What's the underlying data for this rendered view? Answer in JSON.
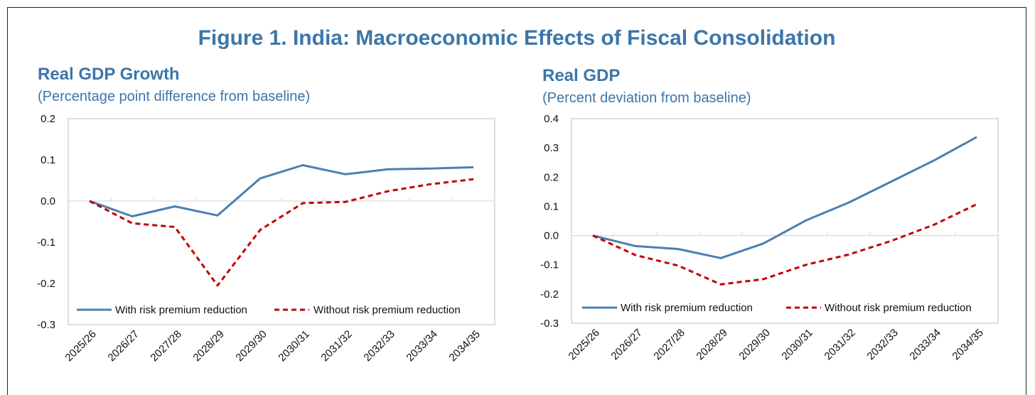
{
  "figure_title": "Figure 1. India: Macroeconomic Effects of Fiscal Consolidation",
  "colors": {
    "accent": "#3c76a9",
    "series_with": "#4d7fad",
    "series_without": "#c00000",
    "grid": "#d0d0d0",
    "frame": "#bfbfbf"
  },
  "panels": [
    {
      "title": "Real GDP Growth",
      "subtitle": "(Percentage point difference from baseline)"
    },
    {
      "title": "Real GDP",
      "subtitle": "(Percent deviation from baseline)"
    }
  ],
  "chart_data": [
    {
      "type": "line",
      "title": "Real GDP Growth",
      "subtitle": "(Percentage point difference from baseline)",
      "categories": [
        "2025/26",
        "2026/27",
        "2027/28",
        "2028/29",
        "2029/30",
        "2030/31",
        "2031/32",
        "2032/33",
        "2033/34",
        "2034/35"
      ],
      "ylim": [
        -0.3,
        0.2
      ],
      "yticks": [
        "0.2",
        "0.1",
        "0.0",
        "-0.1",
        "-0.2",
        "-0.3"
      ],
      "yticks_values": [
        0.2,
        0.1,
        0.0,
        -0.1,
        -0.2,
        -0.3
      ],
      "grid": "horizontal at 0.0 only",
      "legend_position": "bottom inside plot",
      "series": [
        {
          "name": "With risk premium reduction",
          "style": "solid",
          "color": "#4d7fad",
          "values": [
            0.0,
            -0.037,
            -0.013,
            -0.035,
            0.055,
            0.087,
            0.065,
            0.077,
            0.079,
            0.082
          ]
        },
        {
          "name": "Without risk premium reduction",
          "style": "dashed",
          "color": "#c00000",
          "values": [
            0.0,
            -0.054,
            -0.063,
            -0.205,
            -0.07,
            -0.005,
            -0.002,
            0.024,
            0.041,
            0.053
          ]
        }
      ]
    },
    {
      "type": "line",
      "title": "Real GDP",
      "subtitle": "(Percent deviation from baseline)",
      "categories": [
        "2025/26",
        "2026/27",
        "2027/28",
        "2028/29",
        "2029/30",
        "2030/31",
        "2031/32",
        "2032/33",
        "2033/34",
        "2034/35"
      ],
      "ylim": [
        -0.3,
        0.4
      ],
      "yticks": [
        "0.4",
        "0.3",
        "0.2",
        "0.1",
        "0.0",
        "-0.1",
        "-0.2",
        "-0.3"
      ],
      "yticks_values": [
        0.4,
        0.3,
        0.2,
        0.1,
        0.0,
        -0.1,
        -0.2,
        -0.3
      ],
      "grid": "horizontal at 0.0 only",
      "legend_position": "bottom inside plot",
      "series": [
        {
          "name": "With risk premium reduction",
          "style": "solid",
          "color": "#4d7fad",
          "values": [
            0.0,
            -0.036,
            -0.046,
            -0.077,
            -0.027,
            0.052,
            0.113,
            0.185,
            0.257,
            0.337
          ]
        },
        {
          "name": "Without risk premium reduction",
          "style": "dashed",
          "color": "#c00000",
          "values": [
            0.0,
            -0.067,
            -0.103,
            -0.167,
            -0.149,
            -0.1,
            -0.065,
            -0.018,
            0.037,
            0.107
          ]
        }
      ]
    }
  ]
}
